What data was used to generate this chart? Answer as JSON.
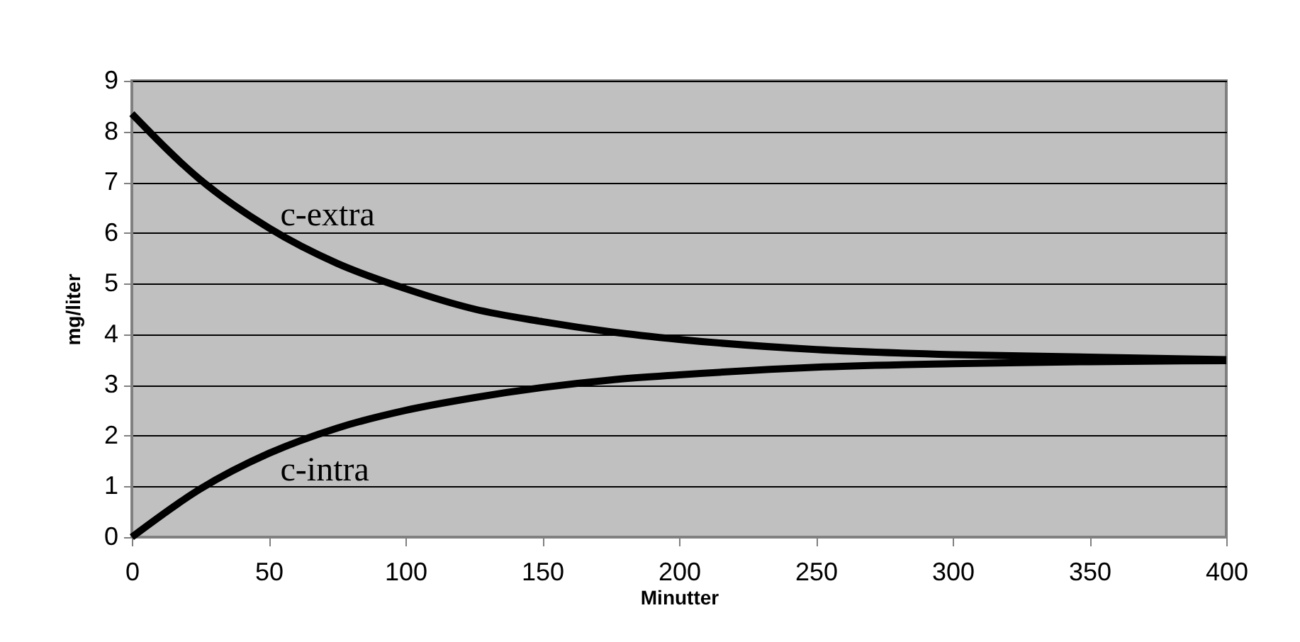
{
  "chart_data": {
    "type": "line",
    "xlabel": "Minutter",
    "ylabel": "mg/liter",
    "x": [
      0,
      25,
      50,
      75,
      100,
      125,
      150,
      175,
      200,
      250,
      300,
      350,
      400
    ],
    "series": [
      {
        "name": "c-extra",
        "color": "#000000",
        "values": [
          8.35,
          7.05,
          6.1,
          5.4,
          4.9,
          4.5,
          4.25,
          4.05,
          3.9,
          3.7,
          3.6,
          3.55,
          3.5
        ]
      },
      {
        "name": "c-intra",
        "color": "#000000",
        "values": [
          0,
          0.95,
          1.65,
          2.15,
          2.5,
          2.75,
          2.95,
          3.1,
          3.2,
          3.35,
          3.42,
          3.46,
          3.48
        ]
      }
    ],
    "xlim": [
      0,
      400
    ],
    "xticks": [
      0,
      50,
      100,
      150,
      200,
      250,
      300,
      350,
      400
    ],
    "ylim": [
      0,
      9
    ],
    "yticks": [
      0,
      1,
      2,
      3,
      4,
      5,
      6,
      7,
      8,
      9
    ],
    "grid": "y",
    "legend": false,
    "marker": "none",
    "line_style": "solid"
  }
}
